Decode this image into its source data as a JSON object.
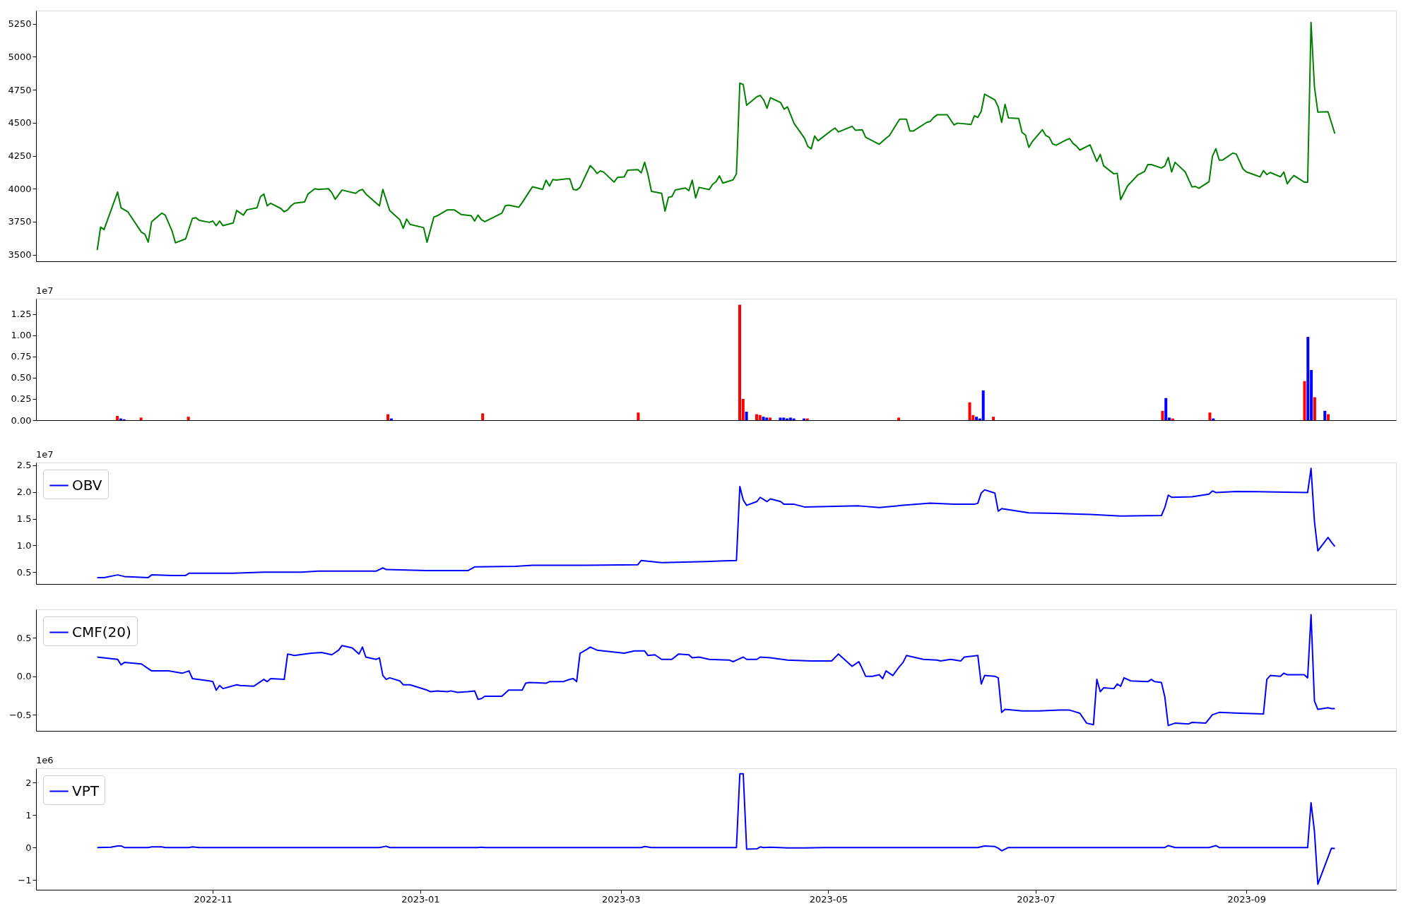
{
  "chart_data": [
    {
      "type": "line",
      "xlim": [
        "2022-09-10",
        "2023-10-15"
      ],
      "ylim": [
        3450,
        5350
      ],
      "yticks": [
        3500,
        3750,
        4000,
        4250,
        4500,
        4750,
        5000,
        5250
      ],
      "tick_labels": "y",
      "legend": false,
      "x": [
        "2022-09-28",
        "2022-09-29",
        "2022-09-30",
        "2022-10-04",
        "2022-10-05",
        "2022-10-06",
        "2022-10-07",
        "2022-10-11",
        "2022-10-12",
        "2022-10-13",
        "2022-10-14",
        "2022-10-17",
        "2022-10-18",
        "2022-10-20",
        "2022-10-21",
        "2022-10-24",
        "2022-10-26",
        "2022-10-27",
        "2022-10-28",
        "2022-10-31",
        "2022-11-01",
        "2022-11-02",
        "2022-11-03",
        "2022-11-04",
        "2022-11-07",
        "2022-11-08",
        "2022-11-10",
        "2022-11-11",
        "2022-11-14",
        "2022-11-15",
        "2022-11-16",
        "2022-11-17",
        "2022-11-18",
        "2022-11-21",
        "2022-11-22",
        "2022-11-23",
        "2022-11-24",
        "2022-11-25",
        "2022-11-28",
        "2022-11-29",
        "2022-12-01",
        "2022-12-02",
        "2022-12-05",
        "2022-12-06",
        "2022-12-07",
        "2022-12-09",
        "2022-12-13",
        "2022-12-14",
        "2022-12-15",
        "2022-12-16",
        "2022-12-20",
        "2022-12-21",
        "2022-12-23",
        "2022-12-26",
        "2022-12-27",
        "2022-12-28",
        "2022-12-29",
        "2023-01-02",
        "2023-01-03",
        "2023-01-05",
        "2023-01-06",
        "2023-01-09",
        "2023-01-11",
        "2023-01-13",
        "2023-01-16",
        "2023-01-17",
        "2023-01-18",
        "2023-01-19",
        "2023-01-20",
        "2023-01-25",
        "2023-01-26",
        "2023-01-27",
        "2023-01-30",
        "2023-01-31",
        "2023-02-02",
        "2023-02-03",
        "2023-02-06",
        "2023-02-07",
        "2023-02-08",
        "2023-02-09",
        "2023-02-10",
        "2023-02-13",
        "2023-02-14",
        "2023-02-15",
        "2023-02-16",
        "2023-02-17",
        "2023-02-20",
        "2023-02-21",
        "2023-02-22",
        "2023-02-23",
        "2023-02-24",
        "2023-02-27",
        "2023-02-28",
        "2023-03-02",
        "2023-03-03",
        "2023-03-06",
        "2023-03-07",
        "2023-03-08",
        "2023-03-09",
        "2023-03-10",
        "2023-03-13",
        "2023-03-14",
        "2023-03-15",
        "2023-03-16",
        "2023-03-17",
        "2023-03-20",
        "2023-03-21",
        "2023-03-22",
        "2023-03-23",
        "2023-03-24",
        "2023-03-27",
        "2023-03-28",
        "2023-03-29",
        "2023-03-30",
        "2023-03-31",
        "2023-04-03",
        "2023-04-04",
        "2023-04-05",
        "2023-04-06",
        "2023-04-07",
        "2023-04-10",
        "2023-04-11",
        "2023-04-12",
        "2023-04-13",
        "2023-04-14",
        "2023-04-17",
        "2023-04-18",
        "2023-04-19",
        "2023-04-21",
        "2023-04-24",
        "2023-04-25",
        "2023-04-26",
        "2023-04-27",
        "2023-04-28",
        "2023-05-02",
        "2023-05-03",
        "2023-05-04",
        "2023-05-08",
        "2023-05-09",
        "2023-05-11",
        "2023-05-12",
        "2023-05-16",
        "2023-05-18",
        "2023-05-19",
        "2023-05-22",
        "2023-05-24",
        "2023-05-25",
        "2023-05-26",
        "2023-05-30",
        "2023-05-31",
        "2023-06-01",
        "2023-06-02",
        "2023-06-05",
        "2023-06-07",
        "2023-06-08",
        "2023-06-12",
        "2023-06-13",
        "2023-06-14",
        "2023-06-15",
        "2023-06-16",
        "2023-06-19",
        "2023-06-20",
        "2023-06-21",
        "2023-06-22",
        "2023-06-23",
        "2023-06-26",
        "2023-06-27",
        "2023-06-28",
        "2023-06-29",
        "2023-06-30",
        "2023-07-03",
        "2023-07-04",
        "2023-07-05",
        "2023-07-06",
        "2023-07-07",
        "2023-07-10",
        "2023-07-11",
        "2023-07-12",
        "2023-07-13",
        "2023-07-14",
        "2023-07-17",
        "2023-07-18",
        "2023-07-19",
        "2023-07-20",
        "2023-07-21",
        "2023-07-24",
        "2023-07-25",
        "2023-07-26",
        "2023-07-28",
        "2023-07-31",
        "2023-08-01",
        "2023-08-02",
        "2023-08-03",
        "2023-08-04",
        "2023-08-07",
        "2023-08-08",
        "2023-08-09",
        "2023-08-10",
        "2023-08-11",
        "2023-08-14",
        "2023-08-16",
        "2023-08-17",
        "2023-08-18",
        "2023-08-21",
        "2023-08-22",
        "2023-08-23",
        "2023-08-24",
        "2023-08-25",
        "2023-08-28",
        "2023-08-29",
        "2023-08-31",
        "2023-09-01",
        "2023-09-05",
        "2023-09-06",
        "2023-09-07",
        "2023-09-08",
        "2023-09-11",
        "2023-09-12",
        "2023-09-13",
        "2023-09-14",
        "2023-09-15",
        "2023-09-18",
        "2023-09-19",
        "2023-09-20",
        "2023-09-21",
        "2023-09-22",
        "2023-09-25",
        "2023-09-27"
      ],
      "series": [
        {
          "color": "#008000",
          "values": [
            3535,
            3710,
            3690,
            3975,
            3855,
            3840,
            3825,
            3670,
            3655,
            3595,
            3750,
            3815,
            3800,
            3680,
            3590,
            3620,
            3775,
            3780,
            3760,
            3745,
            3755,
            3720,
            3755,
            3720,
            3740,
            3835,
            3800,
            3840,
            3855,
            3940,
            3960,
            3870,
            3890,
            3850,
            3825,
            3840,
            3870,
            3890,
            3900,
            3960,
            4000,
            3995,
            4000,
            3970,
            3920,
            3990,
            3965,
            3985,
            3995,
            3960,
            3870,
            3995,
            3835,
            3765,
            3700,
            3770,
            3730,
            3705,
            3595,
            3785,
            3795,
            3840,
            3840,
            3805,
            3795,
            3755,
            3800,
            3765,
            3750,
            3815,
            3870,
            3875,
            3860,
            3895,
            3975,
            4015,
            3995,
            4065,
            4020,
            4070,
            4065,
            4075,
            4075,
            3995,
            3990,
            4010,
            4175,
            4150,
            4115,
            4135,
            4125,
            4050,
            4085,
            4090,
            4140,
            4145,
            4120,
            4200,
            4105,
            3980,
            3965,
            3830,
            3935,
            3940,
            3990,
            4005,
            3985,
            4065,
            3930,
            4010,
            3993,
            4033,
            4053,
            4097,
            4043,
            4067,
            4113,
            4800,
            4790,
            4633,
            4697,
            4707,
            4673,
            4610,
            4690,
            4653,
            4603,
            4620,
            4493,
            4383,
            4320,
            4303,
            4400,
            4363,
            4443,
            4460,
            4430,
            4473,
            4443,
            4447,
            4390,
            4337,
            4383,
            4403,
            4527,
            4527,
            4437,
            4437,
            4503,
            4510,
            4540,
            4560,
            4560,
            4483,
            4497,
            4487,
            4553,
            4540,
            4587,
            4717,
            4673,
            4620,
            4503,
            4640,
            4537,
            4533,
            4427,
            4407,
            4313,
            4357,
            4447,
            4403,
            4390,
            4340,
            4330,
            4370,
            4380,
            4343,
            4323,
            4293,
            4333,
            4270,
            4207,
            4260,
            4173,
            4113,
            4117,
            3917,
            4020,
            4103,
            4117,
            4130,
            4183,
            4183,
            4157,
            4173,
            4237,
            4127,
            4200,
            4127,
            4013,
            4017,
            4003,
            4053,
            4247,
            4303,
            4217,
            4217,
            4270,
            4263,
            4150,
            4127,
            4090,
            4137,
            4107,
            4123,
            4090,
            4127,
            4037,
            4073,
            4100,
            4050,
            4050,
            5260,
            4773,
            4580,
            4583,
            4417
          ]
        }
      ]
    },
    {
      "type": "bar",
      "xlim": [
        "2022-09-10",
        "2023-10-15"
      ],
      "ylim": [
        0,
        1.43
      ],
      "yticks": [
        {
          "value": 0,
          "label": "0.00"
        },
        0.25,
        {
          "value": 0.5,
          "label": "0.50"
        },
        0.75,
        {
          "value": 1,
          "label": "1.00"
        },
        1.25
      ],
      "tick_labels": "y",
      "annotations": [
        "1e7"
      ],
      "x": [
        "2022-10-03",
        "2022-10-04",
        "2022-10-05",
        "2022-10-10",
        "2022-10-24",
        "2022-12-22",
        "2022-12-23",
        "2023-01-19",
        "2023-03-06",
        "2023-04-05",
        "2023-04-06",
        "2023-04-07",
        "2023-04-10",
        "2023-04-11",
        "2023-04-12",
        "2023-04-13",
        "2023-04-14",
        "2023-04-17",
        "2023-04-18",
        "2023-04-19",
        "2023-04-20",
        "2023-04-21",
        "2023-04-24",
        "2023-04-25",
        "2023-05-22",
        "2023-06-12",
        "2023-06-13",
        "2023-06-14",
        "2023-06-15",
        "2023-06-16",
        "2023-06-19",
        "2023-08-08",
        "2023-08-09",
        "2023-08-10",
        "2023-08-11",
        "2023-08-22",
        "2023-08-23",
        "2023-09-19",
        "2023-09-20",
        "2023-09-21",
        "2023-09-22",
        "2023-09-25",
        "2023-09-26"
      ],
      "values": [
        0.05,
        0.02,
        0.01,
        0.03,
        0.04,
        0.07,
        0.02,
        0.08,
        0.09,
        1.36,
        0.25,
        0.1,
        0.07,
        0.06,
        0.04,
        0.03,
        0.03,
        0.03,
        0.03,
        0.02,
        0.03,
        0.02,
        0.02,
        0.02,
        0.03,
        0.21,
        0.06,
        0.04,
        0.02,
        0.35,
        0.04,
        0.11,
        0.26,
        0.03,
        0.02,
        0.09,
        0.02,
        0.46,
        0.98,
        0.59,
        0.27,
        0.11,
        0.07
      ],
      "colors": [
        "#ff0000",
        "#0000ff",
        "#0000ff",
        "#ff0000",
        "#ff0000",
        "#ff0000",
        "#0000ff",
        "#ff0000",
        "#ff0000",
        "#ff0000",
        "#ff0000",
        "#0000ff",
        "#ff0000",
        "#ff0000",
        "#0000ff",
        "#0000ff",
        "#ff0000",
        "#0000ff",
        "#0000ff",
        "#0000ff",
        "#0000ff",
        "#0000ff",
        "#0000ff",
        "#ff0000",
        "#ff0000",
        "#ff0000",
        "#ff0000",
        "#0000ff",
        "#0000ff",
        "#0000ff",
        "#ff0000",
        "#ff0000",
        "#0000ff",
        "#0000ff",
        "#ff0000",
        "#ff0000",
        "#0000ff",
        "#ff0000",
        "#0000ff",
        "#0000ff",
        "#ff0000",
        "#0000ff",
        "#ff0000"
      ]
    },
    {
      "type": "line",
      "xlim": [
        "2022-09-10",
        "2023-10-15"
      ],
      "ylim": [
        0.28,
        2.55
      ],
      "yticks": [
        0.5,
        {
          "value": 1,
          "label": "1.0"
        },
        1.5,
        {
          "value": 2,
          "label": "2.0"
        },
        2.5
      ],
      "tick_labels": "y",
      "legend": "top left",
      "annotations": [
        "1e7"
      ],
      "series": [
        {
          "name": "OBV",
          "color": "#0000ff",
          "x": [
            "2022-09-28",
            "2022-09-30",
            "2022-10-04",
            "2022-10-06",
            "2022-10-13",
            "2022-10-14",
            "2022-10-20",
            "2022-10-24",
            "2022-10-25",
            "2022-11-07",
            "2022-11-16",
            "2022-11-27",
            "2022-12-02",
            "2022-12-19",
            "2022-12-21",
            "2022-12-22",
            "2023-01-03",
            "2023-01-15",
            "2023-01-17",
            "2023-01-29",
            "2023-02-03",
            "2023-02-19",
            "2023-03-06",
            "2023-03-07",
            "2023-03-13",
            "2023-03-26",
            "2023-04-04",
            "2023-04-05",
            "2023-04-06",
            "2023-04-07",
            "2023-04-10",
            "2023-04-11",
            "2023-04-13",
            "2023-04-14",
            "2023-04-17",
            "2023-04-18",
            "2023-04-21",
            "2023-04-24",
            "2023-05-10",
            "2023-05-16",
            "2023-05-23",
            "2023-05-31",
            "2023-06-07",
            "2023-06-13",
            "2023-06-14",
            "2023-06-15",
            "2023-06-16",
            "2023-06-19",
            "2023-06-20",
            "2023-06-21",
            "2023-06-26",
            "2023-06-29",
            "2023-07-07",
            "2023-07-17",
            "2023-07-26",
            "2023-08-07",
            "2023-08-08",
            "2023-08-09",
            "2023-08-10",
            "2023-08-16",
            "2023-08-21",
            "2023-08-22",
            "2023-08-23",
            "2023-08-29",
            "2023-09-19",
            "2023-09-20",
            "2023-09-21",
            "2023-09-22",
            "2023-09-25",
            "2023-09-26",
            "2023-09-27"
          ],
          "values": [
            0.4,
            0.4,
            0.45,
            0.42,
            0.4,
            0.45,
            0.44,
            0.44,
            0.48,
            0.48,
            0.5,
            0.5,
            0.52,
            0.52,
            0.58,
            0.55,
            0.53,
            0.53,
            0.6,
            0.61,
            0.63,
            0.63,
            0.64,
            0.72,
            0.68,
            0.7,
            0.72,
            2.1,
            1.85,
            1.75,
            1.82,
            1.9,
            1.82,
            1.87,
            1.82,
            1.77,
            1.77,
            1.72,
            1.74,
            1.71,
            1.75,
            1.79,
            1.77,
            1.77,
            1.79,
            1.98,
            2.04,
            1.98,
            1.64,
            1.69,
            1.64,
            1.61,
            1.6,
            1.58,
            1.55,
            1.56,
            1.71,
            1.94,
            1.9,
            1.91,
            1.96,
            2.02,
            1.99,
            2.01,
            1.99,
            2.44,
            1.45,
            0.9,
            1.15,
            1.06,
            0.98
          ]
        }
      ]
    },
    {
      "type": "line",
      "xlim": [
        "2022-09-10",
        "2023-10-15"
      ],
      "ylim": [
        -0.71,
        0.87
      ],
      "yticks": [
        {
          "value": -0.5,
          "label": "−0.5"
        },
        {
          "value": 0,
          "label": "0.0"
        },
        0.5
      ],
      "tick_labels": "y",
      "legend": "top left",
      "series": [
        {
          "name": "CMF(20)",
          "color": "#0000ff",
          "x": [
            "2022-09-28",
            "2022-10-04",
            "2022-10-05",
            "2022-10-06",
            "2022-10-11",
            "2022-10-14",
            "2022-10-19",
            "2022-10-23",
            "2022-10-25",
            "2022-10-26",
            "2022-10-31",
            "2022-11-01",
            "2022-11-02",
            "2022-11-03",
            "2022-11-04",
            "2022-11-08",
            "2022-11-09",
            "2022-11-13",
            "2022-11-16",
            "2022-11-17",
            "2022-11-18",
            "2022-11-22",
            "2022-11-23",
            "2022-11-25",
            "2022-11-28",
            "2022-11-30",
            "2022-12-03",
            "2022-12-06",
            "2022-12-07",
            "2022-12-08",
            "2022-12-09",
            "2022-12-12",
            "2022-12-14",
            "2022-12-15",
            "2022-12-16",
            "2022-12-19",
            "2022-12-20",
            "2022-12-21",
            "2022-12-22",
            "2022-12-23",
            "2022-12-26",
            "2022-12-27",
            "2022-12-29",
            "2023-01-03",
            "2023-01-04",
            "2023-01-06",
            "2023-01-09",
            "2023-01-10",
            "2023-01-12",
            "2023-01-15",
            "2023-01-17",
            "2023-01-18",
            "2023-01-19",
            "2023-01-20",
            "2023-01-25",
            "2023-01-27",
            "2023-01-31",
            "2023-02-01",
            "2023-02-02",
            "2023-02-07",
            "2023-02-08",
            "2023-02-12",
            "2023-02-14",
            "2023-02-15",
            "2023-02-16",
            "2023-02-17",
            "2023-02-19",
            "2023-02-20",
            "2023-02-22",
            "2023-03-02",
            "2023-03-05",
            "2023-03-08",
            "2023-03-09",
            "2023-03-11",
            "2023-03-13",
            "2023-03-16",
            "2023-03-18",
            "2023-03-21",
            "2023-03-22",
            "2023-03-24",
            "2023-03-27",
            "2023-04-02",
            "2023-04-03",
            "2023-04-04",
            "2023-04-06",
            "2023-04-07",
            "2023-04-10",
            "2023-04-11",
            "2023-04-14",
            "2023-04-19",
            "2023-04-26",
            "2023-05-02",
            "2023-05-04",
            "2023-05-08",
            "2023-05-10",
            "2023-05-11",
            "2023-05-12",
            "2023-05-14",
            "2023-05-16",
            "2023-05-17",
            "2023-05-18",
            "2023-05-20",
            "2023-05-22",
            "2023-05-23",
            "2023-05-24",
            "2023-05-29",
            "2023-06-02",
            "2023-06-03",
            "2023-06-06",
            "2023-06-09",
            "2023-06-10",
            "2023-06-14",
            "2023-06-15",
            "2023-06-16",
            "2023-06-19",
            "2023-06-20",
            "2023-06-21",
            "2023-06-22",
            "2023-06-27",
            "2023-07-02",
            "2023-07-08",
            "2023-07-11",
            "2023-07-14",
            "2023-07-16",
            "2023-07-18",
            "2023-07-19",
            "2023-07-20",
            "2023-07-21",
            "2023-07-24",
            "2023-07-25",
            "2023-07-26",
            "2023-07-27",
            "2023-07-29",
            "2023-08-03",
            "2023-08-04",
            "2023-08-05",
            "2023-08-07",
            "2023-08-08",
            "2023-08-09",
            "2023-08-11",
            "2023-08-15",
            "2023-08-16",
            "2023-08-20",
            "2023-08-22",
            "2023-08-24",
            "2023-08-30",
            "2023-09-06",
            "2023-09-07",
            "2023-09-08",
            "2023-09-11",
            "2023-09-12",
            "2023-09-13",
            "2023-09-18",
            "2023-09-19",
            "2023-09-20",
            "2023-09-21",
            "2023-09-22",
            "2023-09-25",
            "2023-09-26",
            "2023-09-27"
          ],
          "values": [
            0.25,
            0.22,
            0.15,
            0.18,
            0.16,
            0.07,
            0.07,
            0.04,
            0.07,
            -0.03,
            -0.06,
            -0.07,
            -0.18,
            -0.12,
            -0.16,
            -0.11,
            -0.12,
            -0.13,
            -0.04,
            -0.07,
            -0.03,
            -0.04,
            0.29,
            0.27,
            0.29,
            0.3,
            0.31,
            0.28,
            0.31,
            0.34,
            0.4,
            0.37,
            0.29,
            0.38,
            0.25,
            0.22,
            0.24,
            0.01,
            -0.04,
            -0.02,
            -0.06,
            -0.11,
            -0.11,
            -0.18,
            -0.2,
            -0.19,
            -0.2,
            -0.19,
            -0.21,
            -0.2,
            -0.19,
            -0.3,
            -0.29,
            -0.26,
            -0.26,
            -0.18,
            -0.18,
            -0.09,
            -0.08,
            -0.09,
            -0.07,
            -0.07,
            -0.04,
            -0.03,
            -0.07,
            0.3,
            0.35,
            0.38,
            0.34,
            0.3,
            0.33,
            0.33,
            0.27,
            0.28,
            0.22,
            0.22,
            0.29,
            0.28,
            0.24,
            0.25,
            0.22,
            0.21,
            0.19,
            0.21,
            0.25,
            0.22,
            0.22,
            0.25,
            0.24,
            0.21,
            0.2,
            0.2,
            0.29,
            0.13,
            0.19,
            0.1,
            0.0,
            0.0,
            0.02,
            -0.03,
            0.07,
            0.01,
            0.13,
            0.18,
            0.27,
            0.22,
            0.21,
            0.2,
            0.22,
            0.2,
            0.25,
            0.27,
            -0.1,
            0.01,
            0.0,
            -0.02,
            -0.47,
            -0.43,
            -0.45,
            -0.45,
            -0.44,
            -0.44,
            -0.48,
            -0.61,
            -0.63,
            -0.04,
            -0.2,
            -0.15,
            -0.16,
            -0.1,
            -0.13,
            -0.02,
            -0.06,
            -0.07,
            -0.04,
            -0.07,
            -0.08,
            -0.27,
            -0.64,
            -0.61,
            -0.62,
            -0.6,
            -0.61,
            -0.5,
            -0.47,
            -0.48,
            -0.49,
            -0.04,
            0.01,
            0.0,
            0.04,
            0.02,
            0.02,
            -0.02,
            0.8,
            -0.32,
            -0.43,
            -0.41,
            -0.42,
            -0.42
          ]
        }
      ]
    },
    {
      "type": "line",
      "xlim": [
        "2022-09-10",
        "2023-10-15"
      ],
      "ylim": [
        -1.3,
        2.44
      ],
      "yticks": [
        {
          "value": -1,
          "label": "−1"
        },
        0,
        1,
        2
      ],
      "xticks": [
        "2022-11",
        "2023-01",
        "2023-03",
        "2023-05",
        "2023-07",
        "2023-09"
      ],
      "legend": "top left",
      "annotations": [
        "1e6"
      ],
      "series": [
        {
          "name": "VPT",
          "color": "#0000ff",
          "x": [
            "2022-09-28",
            "2022-10-02",
            "2022-10-04",
            "2022-10-05",
            "2022-10-06",
            "2022-10-13",
            "2022-10-14",
            "2022-10-17",
            "2022-10-18",
            "2022-10-25",
            "2022-10-26",
            "2022-10-28",
            "2022-12-20",
            "2022-12-22",
            "2022-12-23",
            "2023-01-18",
            "2023-01-19",
            "2023-01-20",
            "2023-03-07",
            "2023-03-08",
            "2023-03-10",
            "2023-04-04",
            "2023-04-05",
            "2023-04-06",
            "2023-04-07",
            "2023-04-10",
            "2023-04-11",
            "2023-04-12",
            "2023-04-14",
            "2023-04-19",
            "2023-04-24",
            "2023-04-30",
            "2023-06-14",
            "2023-06-16",
            "2023-06-19",
            "2023-06-20",
            "2023-06-21",
            "2023-06-23",
            "2023-08-08",
            "2023-08-09",
            "2023-08-11",
            "2023-08-21",
            "2023-08-23",
            "2023-08-24",
            "2023-09-19",
            "2023-09-20",
            "2023-09-21",
            "2023-09-22",
            "2023-09-26",
            "2023-09-27"
          ],
          "values": [
            0.0,
            0.01,
            0.05,
            0.05,
            0.0,
            0.0,
            0.02,
            0.02,
            0.0,
            0.0,
            0.02,
            0.0,
            0.0,
            0.04,
            0.0,
            0.0,
            0.01,
            0.0,
            0.0,
            0.03,
            0.0,
            0.0,
            2.27,
            2.27,
            -0.05,
            -0.04,
            0.02,
            0.0,
            0.01,
            -0.01,
            -0.01,
            0.0,
            0.0,
            0.05,
            0.03,
            -0.02,
            -0.1,
            0.0,
            0.0,
            0.06,
            0.0,
            0.0,
            0.06,
            0.0,
            0.0,
            1.38,
            0.5,
            -1.13,
            -0.02,
            -0.03
          ]
        }
      ]
    }
  ]
}
